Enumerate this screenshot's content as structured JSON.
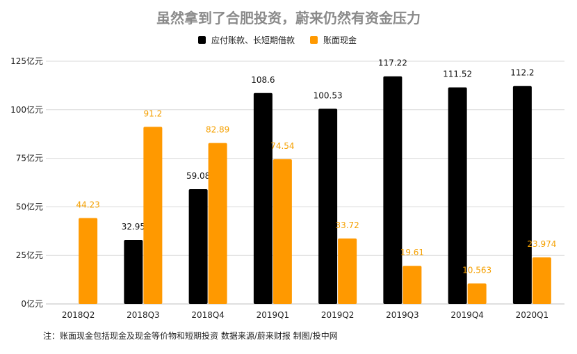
{
  "title": "虽然拿到了合肥投资，蔚来仍然有资金压力",
  "note": "注：账面现金包括现金及现金等价物和短期投资  数据来源/蔚来财报   制图/投中网",
  "colors": {
    "series_a": "#000000",
    "series_b": "#ff9900",
    "grid": "#d9d9d9",
    "label_b": "#f5a000"
  },
  "chart_data": {
    "type": "bar",
    "categories": [
      "2018Q2",
      "2018Q3",
      "2018Q4",
      "2019Q1",
      "2019Q2",
      "2019Q3",
      "2019Q4",
      "2020Q1"
    ],
    "series": [
      {
        "name": "应付账款、长短期借款",
        "values": [
          null,
          32.95,
          59.08,
          108.6,
          100.53,
          117.22,
          111.52,
          112.2
        ],
        "labels": [
          "",
          "32.95",
          "59.08",
          "108.6",
          "100.53",
          "117.22",
          "111.52",
          "112.2"
        ]
      },
      {
        "name": "账面现金",
        "values": [
          44.23,
          91.2,
          82.89,
          74.54,
          33.72,
          19.61,
          10.563,
          23.974
        ],
        "labels": [
          "44.23",
          "91.2",
          "82.89",
          "74.54",
          "33.72",
          "19.61",
          "10.563",
          "23.974"
        ]
      }
    ],
    "ylim": [
      0,
      125
    ],
    "yticks": [
      0,
      25,
      50,
      75,
      100,
      125
    ],
    "ytick_labels": [
      "0亿元",
      "25亿元",
      "50亿元",
      "75亿元",
      "100亿元",
      "125亿元"
    ],
    "grid": true,
    "legend_position": "top-center"
  }
}
